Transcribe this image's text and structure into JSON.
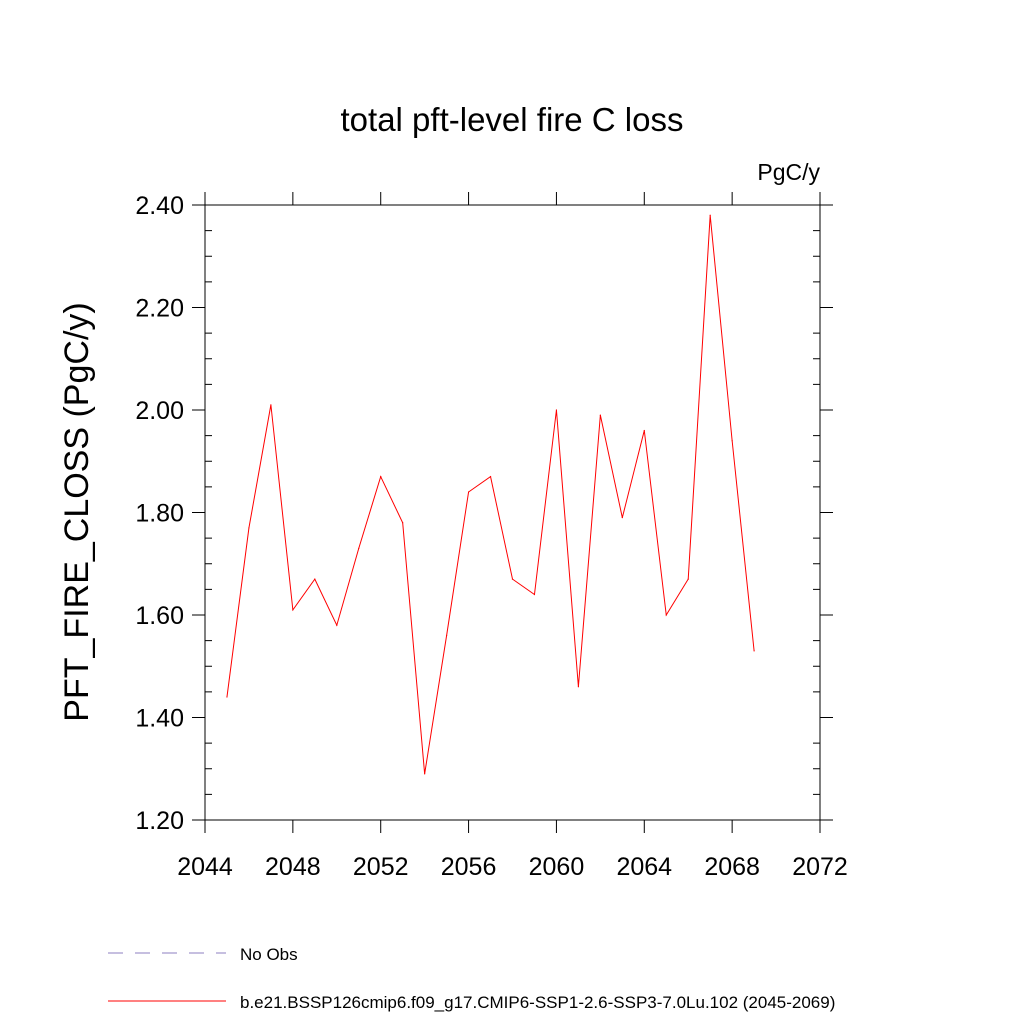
{
  "chart_data": {
    "type": "line",
    "title": "total pft-level fire C loss",
    "units_label": "PgC/y",
    "xlabel": "",
    "ylabel": "PFT_FIRE_CLOSS  (PgC/y)",
    "xlim": [
      2044,
      2072
    ],
    "ylim": [
      1.2,
      2.4
    ],
    "xticks": [
      2044,
      2048,
      2052,
      2056,
      2060,
      2064,
      2068,
      2072
    ],
    "xtick_labels": [
      "2044",
      "2048",
      "2052",
      "2056",
      "2060",
      "2064",
      "2068",
      "2072"
    ],
    "yticks": [
      1.2,
      1.4,
      1.6,
      1.8,
      2.0,
      2.2,
      2.4
    ],
    "ytick_labels": [
      "1.20",
      "1.40",
      "1.60",
      "1.80",
      "2.00",
      "2.20",
      "2.40"
    ],
    "grid": false,
    "legend_position": "bottom",
    "series": [
      {
        "name": "b.e21.BSSP126cmip6.f09_g17.CMIP6-SSP1-2.6-SSP3-7.0Lu.102 (2045-2069)",
        "color": "#ff0000",
        "dash": "solid",
        "x": [
          2045,
          2046,
          2047,
          2048,
          2049,
          2050,
          2051,
          2052,
          2053,
          2054,
          2055,
          2056,
          2057,
          2058,
          2059,
          2060,
          2061,
          2062,
          2063,
          2064,
          2065,
          2066,
          2067,
          2068,
          2069
        ],
        "y": [
          1.44,
          1.77,
          2.01,
          1.61,
          1.67,
          1.58,
          1.73,
          1.87,
          1.78,
          1.29,
          1.56,
          1.84,
          1.87,
          1.67,
          1.64,
          2.0,
          1.46,
          1.99,
          1.79,
          1.96,
          1.6,
          1.67,
          2.38,
          1.94,
          1.53
        ]
      }
    ],
    "legend": [
      {
        "label": "No Obs",
        "color": "#8c7fc0",
        "dash": "dashed"
      },
      {
        "label": "b.e21.BSSP126cmip6.f09_g17.CMIP6-SSP1-2.6-SSP3-7.0Lu.102 (2045-2069)",
        "color": "#ff0000",
        "dash": "solid"
      }
    ]
  }
}
